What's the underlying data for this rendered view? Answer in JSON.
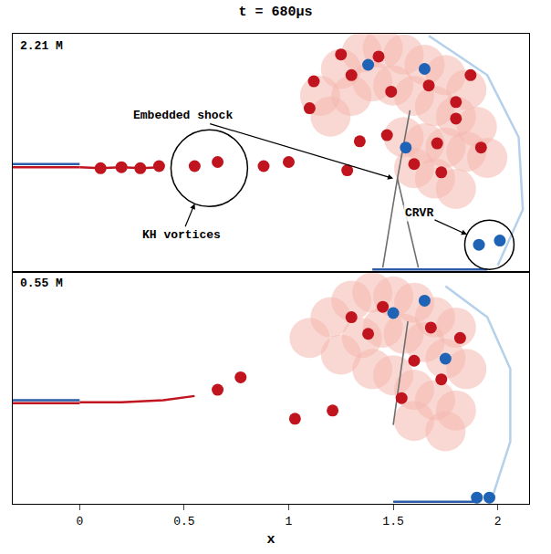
{
  "chart_data": {
    "type": "scatter",
    "title": "t = 680μs",
    "xlabel": "x",
    "xlim": [
      -0.32,
      2.15
    ],
    "xticks": [
      0,
      0.5,
      1,
      1.5,
      2
    ],
    "tick_labels": "x",
    "panels": [
      {
        "label": "2.21 M",
        "ylim": [
          0,
          1.15
        ],
        "series": [
          {
            "type": "scatter",
            "marker": "blob",
            "color": "#f4b8ae",
            "x": [
              1.15,
              1.25,
              1.35,
              1.45,
              1.55,
              1.65,
              1.75,
              1.85,
              1.2,
              1.3,
              1.4,
              1.5,
              1.6,
              1.7,
              1.8,
              1.9,
              1.55,
              1.65,
              1.75,
              1.85,
              1.95,
              1.6,
              1.7,
              1.8
            ],
            "y": [
              0.85,
              0.98,
              1.06,
              1.08,
              1.05,
              1.0,
              0.95,
              0.88,
              0.75,
              0.85,
              0.92,
              0.9,
              0.85,
              0.8,
              0.75,
              0.7,
              0.65,
              0.62,
              0.6,
              0.58,
              0.55,
              0.5,
              0.45,
              0.4
            ]
          },
          {
            "type": "line",
            "line_style": "solid",
            "color": "#2a5caa",
            "x": [
              -0.32,
              0
            ],
            "y": [
              0.52,
              0.52
            ]
          },
          {
            "type": "line",
            "line_style": "solid",
            "color": "#c0141e",
            "x": [
              -0.32,
              0
            ],
            "y": [
              0.505,
              0.505
            ]
          },
          {
            "type": "line",
            "line_style": "solid",
            "color": "#c0141e",
            "x": [
              0,
              0.1,
              0.2,
              0.3,
              0.38
            ],
            "y": [
              0.505,
              0.5,
              0.505,
              0.5,
              0.505
            ]
          },
          {
            "type": "line",
            "line_style": "solid",
            "color": "#6e6e6e",
            "x": [
              1.58,
              1.52,
              1.45
            ],
            "y": [
              0.78,
              0.45,
              0.02
            ]
          },
          {
            "type": "line",
            "line_style": "solid",
            "color": "#6e6e6e",
            "x": [
              1.52,
              1.62
            ],
            "y": [
              0.45,
              0.02
            ]
          },
          {
            "type": "line",
            "line_style": "solid",
            "color": "#b5d0ea",
            "x": [
              1.67,
              1.95,
              2.1,
              2.12,
              2.0
            ],
            "y": [
              1.14,
              0.95,
              0.65,
              0.3,
              0.03
            ]
          },
          {
            "type": "line",
            "line_style": "solid",
            "color": "#2a5caa",
            "x": [
              1.4,
              1.95
            ],
            "y": [
              0.01,
              0.01
            ]
          },
          {
            "type": "scatter",
            "marker": "circle",
            "color": "#c0141e",
            "x": [
              0.1,
              0.2,
              0.29,
              0.38,
              0.55,
              0.66,
              0.88,
              1.0,
              1.28,
              1.1,
              1.12,
              1.25,
              1.43,
              1.3,
              1.49,
              1.67,
              1.8,
              1.71,
              1.6,
              1.73,
              1.8,
              1.47,
              1.34,
              1.87,
              1.92
            ],
            "y": [
              0.5,
              0.505,
              0.5,
              0.51,
              0.51,
              0.53,
              0.51,
              0.53,
              0.49,
              0.79,
              0.92,
              1.05,
              1.04,
              0.95,
              0.87,
              0.9,
              0.74,
              0.62,
              0.52,
              0.48,
              0.82,
              0.66,
              0.63,
              0.95,
              0.6
            ]
          },
          {
            "type": "scatter",
            "marker": "circle",
            "color": "#1e63b5",
            "x": [
              1.91,
              2.01,
              1.38,
              1.65,
              1.56
            ],
            "y": [
              0.13,
              0.15,
              1.0,
              0.98,
              0.6
            ]
          }
        ],
        "annotations": [
          {
            "text": "KH vortices",
            "x": 0.62,
            "y": 0.5,
            "marker": "circle"
          },
          {
            "text": "Embedded shock",
            "x": 1.5,
            "y": 0.45
          },
          {
            "text": "CRVR",
            "x": 1.96,
            "y": 0.13,
            "marker": "circle"
          }
        ]
      },
      {
        "label": "0.55 M",
        "ylim": [
          0,
          1.12
        ],
        "series": [
          {
            "type": "scatter",
            "marker": "blob",
            "color": "#f4b8ae",
            "x": [
              1.1,
              1.2,
              1.3,
              1.4,
              1.5,
              1.6,
              1.7,
              1.8,
              1.25,
              1.35,
              1.45,
              1.55,
              1.65,
              1.75,
              1.85,
              1.4,
              1.5,
              1.6,
              1.7,
              1.8,
              1.6,
              1.75
            ],
            "y": [
              0.8,
              0.9,
              0.98,
              1.02,
              1.0,
              0.97,
              0.9,
              0.85,
              0.72,
              0.8,
              0.85,
              0.82,
              0.78,
              0.7,
              0.65,
              0.65,
              0.62,
              0.55,
              0.5,
              0.45,
              0.4,
              0.35
            ]
          },
          {
            "type": "line",
            "line_style": "solid",
            "color": "#2a5caa",
            "x": [
              -0.32,
              0
            ],
            "y": [
              0.5,
              0.5
            ]
          },
          {
            "type": "line",
            "line_style": "solid",
            "color": "#c0141e",
            "x": [
              -0.32,
              0
            ],
            "y": [
              0.485,
              0.485
            ]
          },
          {
            "type": "line",
            "line_style": "solid",
            "color": "#c0141e",
            "x": [
              0,
              0.2,
              0.4,
              0.55
            ],
            "y": [
              0.49,
              0.49,
              0.5,
              0.52
            ]
          },
          {
            "type": "line",
            "line_style": "solid",
            "color": "#6e6e6e",
            "x": [
              1.57,
              1.5
            ],
            "y": [
              0.88,
              0.38
            ]
          },
          {
            "type": "line",
            "line_style": "solid",
            "color": "#b5d0ea",
            "x": [
              1.75,
              1.95,
              2.06,
              2.06,
              1.98
            ],
            "y": [
              1.05,
              0.9,
              0.65,
              0.3,
              0.05
            ]
          },
          {
            "type": "line",
            "line_style": "solid",
            "color": "#2a5caa",
            "x": [
              1.5,
              1.9
            ],
            "y": [
              0.01,
              0.01
            ]
          },
          {
            "type": "scatter",
            "marker": "circle",
            "color": "#c0141e",
            "x": [
              0.66,
              0.77,
              1.03,
              1.21,
              1.38,
              1.54,
              1.6,
              1.73,
              1.45,
              1.3,
              1.68,
              1.82
            ],
            "y": [
              0.55,
              0.61,
              0.41,
              0.45,
              0.82,
              0.51,
              0.69,
              0.6,
              0.95,
              0.9,
              0.85,
              0.8
            ]
          },
          {
            "type": "scatter",
            "marker": "circle",
            "color": "#1e63b5",
            "x": [
              1.9,
              1.96,
              1.5,
              1.65,
              1.75
            ],
            "y": [
              0.03,
              0.03,
              0.92,
              0.98,
              0.7
            ]
          }
        ],
        "annotations": []
      }
    ]
  }
}
